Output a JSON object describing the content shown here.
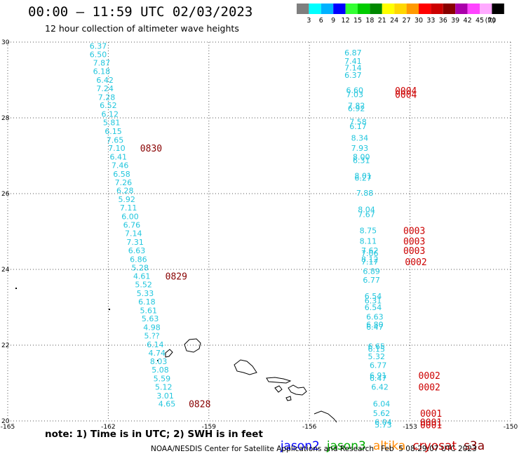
{
  "title": "00:00 – 11:59 UTC 02/03/2023",
  "subtitle": "12 hour collection of altimeter wave heights",
  "colorbar": {
    "unit": "(ft)",
    "items": [
      {
        "label": "3",
        "color": "#7f7f7f"
      },
      {
        "label": "6",
        "color": "#00ffff"
      },
      {
        "label": "9",
        "color": "#00b2ff"
      },
      {
        "label": "12",
        "color": "#0000ff"
      },
      {
        "label": "15",
        "color": "#33ff33"
      },
      {
        "label": "18",
        "color": "#00cc00"
      },
      {
        "label": "21",
        "color": "#008800"
      },
      {
        "label": "24",
        "color": "#ffff00"
      },
      {
        "label": "27",
        "color": "#ffd700"
      },
      {
        "label": "30",
        "color": "#ff9900"
      },
      {
        "label": "33",
        "color": "#ff0000"
      },
      {
        "label": "36",
        "color": "#cc0000"
      },
      {
        "label": "39",
        "color": "#880000"
      },
      {
        "label": "42",
        "color": "#aa00aa"
      },
      {
        "label": "45",
        "color": "#ff44ff"
      },
      {
        "label": "70",
        "color": "#ffaaff"
      },
      {
        "label": "",
        "color": "#000000"
      }
    ]
  },
  "map": {
    "lon_ticks": [
      "-165",
      "-162",
      "-159",
      "-156",
      "-153",
      "-150"
    ],
    "lat_ticks": [
      "30",
      "28",
      "26",
      "24",
      "22",
      "20"
    ],
    "lon_range": [
      -165,
      -150
    ],
    "lat_range": [
      20,
      30
    ],
    "wave_color": "#22c6dd",
    "time_color": "#cc0000",
    "time_color_dark": "#880000",
    "track1": {
      "values": [
        {
          "lat": 29.9,
          "lon": -162.3,
          "v": "6.37"
        },
        {
          "lat": 29.68,
          "lon": -162.3,
          "v": "6.50"
        },
        {
          "lat": 29.45,
          "lon": -162.2,
          "v": "7.87"
        },
        {
          "lat": 29.23,
          "lon": -162.2,
          "v": "6.18"
        },
        {
          "lat": 29.0,
          "lon": -162.1,
          "v": "6.42"
        },
        {
          "lat": 28.78,
          "lon": -162.1,
          "v": "7.24"
        },
        {
          "lat": 28.55,
          "lon": -162.05,
          "v": "7.28"
        },
        {
          "lat": 28.33,
          "lon": -162.0,
          "v": "6.52"
        },
        {
          "lat": 28.1,
          "lon": -161.95,
          "v": "6.12"
        },
        {
          "lat": 27.88,
          "lon": -161.9,
          "v": "5.81"
        },
        {
          "lat": 27.65,
          "lon": -161.85,
          "v": "6.15"
        },
        {
          "lat": 27.42,
          "lon": -161.8,
          "v": "7.65"
        },
        {
          "lat": 27.2,
          "lon": -161.75,
          "v": "7.10"
        },
        {
          "lat": 26.97,
          "lon": -161.7,
          "v": "6.41"
        },
        {
          "lat": 26.75,
          "lon": -161.65,
          "v": "7.46"
        },
        {
          "lat": 26.52,
          "lon": -161.6,
          "v": "6.58"
        },
        {
          "lat": 26.3,
          "lon": -161.55,
          "v": "7.26"
        },
        {
          "lat": 26.08,
          "lon": -161.5,
          "v": "6.28"
        },
        {
          "lat": 25.85,
          "lon": -161.45,
          "v": "5.92"
        },
        {
          "lat": 25.63,
          "lon": -161.4,
          "v": "7.11"
        },
        {
          "lat": 25.4,
          "lon": -161.35,
          "v": "6.00"
        },
        {
          "lat": 25.18,
          "lon": -161.3,
          "v": "6.76"
        },
        {
          "lat": 24.95,
          "lon": -161.25,
          "v": "7.14"
        },
        {
          "lat": 24.72,
          "lon": -161.2,
          "v": "7.31"
        },
        {
          "lat": 24.5,
          "lon": -161.15,
          "v": "6.63"
        },
        {
          "lat": 24.27,
          "lon": -161.1,
          "v": "6.86"
        },
        {
          "lat": 24.05,
          "lon": -161.05,
          "v": "5.28"
        },
        {
          "lat": 23.82,
          "lon": -161.0,
          "v": "4.61"
        },
        {
          "lat": 23.6,
          "lon": -160.95,
          "v": "5.52"
        },
        {
          "lat": 23.37,
          "lon": -160.9,
          "v": "5.33"
        },
        {
          "lat": 23.15,
          "lon": -160.85,
          "v": "6.18"
        },
        {
          "lat": 22.92,
          "lon": -160.8,
          "v": "5.61"
        },
        {
          "lat": 22.7,
          "lon": -160.75,
          "v": "5.63"
        },
        {
          "lat": 22.47,
          "lon": -160.7,
          "v": "4.98"
        },
        {
          "lat": 22.25,
          "lon": -160.7,
          "v": "5.??"
        },
        {
          "lat": 22.02,
          "lon": -160.6,
          "v": "6.14"
        },
        {
          "lat": 21.8,
          "lon": -160.55,
          "v": "4.74"
        },
        {
          "lat": 21.57,
          "lon": -160.5,
          "v": "8.03"
        },
        {
          "lat": 21.35,
          "lon": -160.45,
          "v": "5.08"
        },
        {
          "lat": 21.12,
          "lon": -160.4,
          "v": "5.59"
        },
        {
          "lat": 20.9,
          "lon": -160.35,
          "v": "5.12"
        },
        {
          "lat": 20.67,
          "lon": -160.3,
          "v": "3.01"
        },
        {
          "lat": 20.45,
          "lon": -160.25,
          "v": "4.65"
        }
      ],
      "times": [
        {
          "lat": 27.2,
          "lon": -161.05,
          "v": "0830"
        },
        {
          "lat": 23.82,
          "lon": -160.3,
          "v": "0829"
        },
        {
          "lat": 20.45,
          "lon": -159.6,
          "v": "0828"
        }
      ]
    },
    "track2": {
      "values": [
        {
          "lat": 29.72,
          "lon": -154.7,
          "v": "6.87"
        },
        {
          "lat": 29.5,
          "lon": -154.7,
          "v": "7.41"
        },
        {
          "lat": 29.32,
          "lon": -154.7,
          "v": "7.14"
        },
        {
          "lat": 29.13,
          "lon": -154.7,
          "v": "6.37"
        },
        {
          "lat": 28.73,
          "lon": -154.65,
          "v": "6.60"
        },
        {
          "lat": 28.62,
          "lon": -154.65,
          "v": "7.03"
        },
        {
          "lat": 28.32,
          "lon": -154.6,
          "v": "7.82"
        },
        {
          "lat": 28.25,
          "lon": -154.6,
          "v": "6.92"
        },
        {
          "lat": 27.9,
          "lon": -154.55,
          "v": "7.58"
        },
        {
          "lat": 27.78,
          "lon": -154.55,
          "v": "6.17"
        },
        {
          "lat": 27.47,
          "lon": -154.5,
          "v": "8.34"
        },
        {
          "lat": 27.2,
          "lon": -154.5,
          "v": "7.93"
        },
        {
          "lat": 26.97,
          "lon": -154.45,
          "v": "8.00"
        },
        {
          "lat": 26.88,
          "lon": -154.45,
          "v": "6.31"
        },
        {
          "lat": 26.47,
          "lon": -154.4,
          "v": "8.01"
        },
        {
          "lat": 26.42,
          "lon": -154.4,
          "v": "6.27"
        },
        {
          "lat": 26.02,
          "lon": -154.35,
          "v": "7.88"
        },
        {
          "lat": 25.58,
          "lon": -154.3,
          "v": "8.04"
        },
        {
          "lat": 25.45,
          "lon": -154.3,
          "v": "7.67"
        },
        {
          "lat": 25.03,
          "lon": -154.25,
          "v": "8.75"
        },
        {
          "lat": 24.75,
          "lon": -154.25,
          "v": "8.11"
        },
        {
          "lat": 24.5,
          "lon": -154.2,
          "v": "7.62"
        },
        {
          "lat": 24.43,
          "lon": -154.2,
          "v": "7.06"
        },
        {
          "lat": 24.27,
          "lon": -154.2,
          "v": "8.12"
        },
        {
          "lat": 24.2,
          "lon": -154.2,
          "v": "7.17"
        },
        {
          "lat": 23.95,
          "lon": -154.15,
          "v": "6.89"
        },
        {
          "lat": 23.72,
          "lon": -154.15,
          "v": "6.77"
        },
        {
          "lat": 23.3,
          "lon": -154.1,
          "v": "6.54"
        },
        {
          "lat": 23.18,
          "lon": -154.1,
          "v": "6.31"
        },
        {
          "lat": 23.0,
          "lon": -154.1,
          "v": "6.54"
        },
        {
          "lat": 22.75,
          "lon": -154.05,
          "v": "6.63"
        },
        {
          "lat": 22.55,
          "lon": -154.05,
          "v": "6.80"
        },
        {
          "lat": 22.48,
          "lon": -154.05,
          "v": "6.47"
        },
        {
          "lat": 21.97,
          "lon": -154.0,
          "v": "6.65"
        },
        {
          "lat": 21.9,
          "lon": -154.0,
          "v": "6.15"
        },
        {
          "lat": 21.7,
          "lon": -154.0,
          "v": "5.32"
        },
        {
          "lat": 21.47,
          "lon": -153.95,
          "v": "6.77"
        },
        {
          "lat": 21.2,
          "lon": -153.95,
          "v": "6.91"
        },
        {
          "lat": 21.13,
          "lon": -153.95,
          "v": "6.47"
        },
        {
          "lat": 20.9,
          "lon": -153.9,
          "v": "6.42"
        },
        {
          "lat": 20.45,
          "lon": -153.85,
          "v": "6.04"
        },
        {
          "lat": 20.2,
          "lon": -153.85,
          "v": "5.62"
        },
        {
          "lat": 19.97,
          "lon": -153.8,
          "v": "6.04"
        },
        {
          "lat": 19.9,
          "lon": -153.8,
          "v": "5.73"
        }
      ],
      "times": [
        {
          "lat": 28.72,
          "lon": -153.45,
          "v": "0004"
        },
        {
          "lat": 28.62,
          "lon": -153.45,
          "v": "0004"
        },
        {
          "lat": 25.03,
          "lon": -153.2,
          "v": "0003"
        },
        {
          "lat": 24.75,
          "lon": -153.2,
          "v": "0003"
        },
        {
          "lat": 24.5,
          "lon": -153.2,
          "v": "0003"
        },
        {
          "lat": 24.2,
          "lon": -153.15,
          "v": "0002"
        },
        {
          "lat": 21.2,
          "lon": -152.75,
          "v": "0002"
        },
        {
          "lat": 20.9,
          "lon": -152.75,
          "v": "0002"
        },
        {
          "lat": 20.2,
          "lon": -152.7,
          "v": "0001"
        },
        {
          "lat": 19.97,
          "lon": -152.7,
          "v": "0001"
        },
        {
          "lat": 19.9,
          "lon": -152.7,
          "v": "0001"
        }
      ]
    }
  },
  "note": "note: 1) Time is in UTC; 2) SWH is in feet",
  "satellites": [
    {
      "name": "jason2",
      "color": "#0000ff"
    },
    {
      "name": "jason3",
      "color": "#00aa00"
    },
    {
      "name": "altika",
      "color": "#ff8800"
    },
    {
      "name": "cryosat",
      "color": "#cc0000"
    },
    {
      "name": "s3a",
      "color": "#880000"
    }
  ],
  "credit": "NOAA/NESDIS Center for Satellite Applications and Research   Feb  5 08:29:07 UTC 2023"
}
